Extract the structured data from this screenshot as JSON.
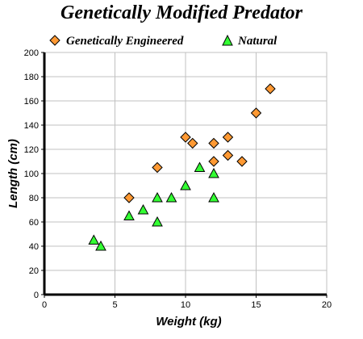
{
  "chart_data": {
    "type": "scatter",
    "title": "Genetically Modified Predator",
    "xlabel": "Weight (kg)",
    "ylabel": "Length (cm)",
    "xlim": [
      0,
      20
    ],
    "ylim": [
      0,
      200
    ],
    "x_ticks": [
      0,
      5,
      10,
      15,
      20
    ],
    "y_ticks": [
      0,
      20,
      40,
      60,
      80,
      100,
      120,
      140,
      160,
      180,
      200
    ],
    "grid": true,
    "legend_position": "top",
    "series": [
      {
        "name": "Genetically Engineered",
        "marker": "diamond",
        "color": "#ff9933",
        "x": [
          6,
          8,
          10,
          10.5,
          12,
          12,
          13,
          13,
          14,
          15,
          16
        ],
        "y": [
          80,
          105,
          130,
          125,
          125,
          110,
          130,
          115,
          110,
          150,
          170
        ]
      },
      {
        "name": "Natural",
        "marker": "triangle",
        "color": "#33ff33",
        "x": [
          3.5,
          4,
          6,
          7,
          8,
          8,
          9,
          10,
          11,
          12,
          12
        ],
        "y": [
          45,
          40,
          65,
          70,
          80,
          60,
          80,
          90,
          105,
          100,
          80
        ]
      }
    ]
  }
}
